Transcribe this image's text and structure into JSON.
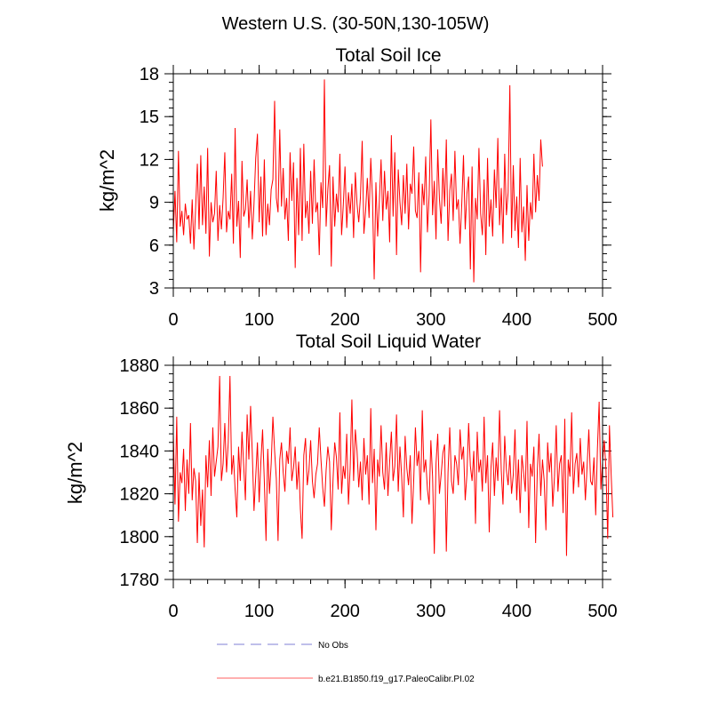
{
  "figure_title": "Western U.S. (30-50N,130-105W)",
  "legend": {
    "items": [
      {
        "label": "No Obs",
        "color": "#9999dd",
        "style": "dashed"
      },
      {
        "label": "b.e21.B1850.f19_g17.PaleoCalibr.PI.02",
        "color": "#ff8080",
        "style": "solid"
      }
    ]
  },
  "chart_data": [
    {
      "type": "line",
      "title": "Total Soil Ice",
      "xlabel": "",
      "ylabel": "kg/m^2",
      "xlim": [
        0,
        500
      ],
      "ylim": [
        3,
        18
      ],
      "xticks": [
        0,
        100,
        200,
        300,
        400,
        500
      ],
      "yticks": [
        3,
        6,
        9,
        12,
        15,
        18
      ],
      "xtick_labels": [
        "0",
        "100",
        "200",
        "300",
        "400",
        "500"
      ],
      "ytick_labels": [
        "3",
        "6",
        "9",
        "12",
        "15",
        "18"
      ],
      "series": [
        {
          "name": "b.e21.B1850.f19_g17.PaleoCalibr.PI.02",
          "color": "#ff0000",
          "x_start": 0,
          "x_step": 2,
          "values": [
            6.9,
            9.8,
            6.2,
            12.6,
            7.3,
            8.4,
            6.7,
            8.9,
            7.8,
            8.1,
            6.1,
            9.2,
            5.7,
            8.6,
            11.7,
            7.1,
            12.3,
            7.4,
            10.1,
            6.8,
            12.8,
            5.2,
            9.0,
            7.6,
            8.2,
            11.2,
            6.3,
            8.8,
            7.1,
            9.3,
            12.5,
            6.9,
            8.4,
            7.8,
            11.0,
            6.1,
            14.2,
            7.3,
            9.1,
            5.1,
            11.9,
            8.0,
            8.5,
            10.6,
            7.2,
            9.8,
            6.4,
            8.9,
            12.1,
            13.8,
            7.6,
            10.8,
            6.6,
            12.0,
            6.7,
            8.9,
            7.4,
            9.9,
            10.6,
            16.1,
            9.3,
            8.3,
            14.1,
            8.7,
            11.4,
            7.8,
            9.3,
            6.3,
            12.5,
            9.1,
            11.8,
            4.4,
            10.7,
            6.7,
            12.8,
            6.3,
            13.1,
            7.9,
            9.1,
            6.8,
            11.2,
            7.5,
            12.0,
            8.3,
            9.0,
            5.3,
            10.4,
            8.6,
            17.6,
            7.3,
            9.9,
            11.6,
            4.5,
            10.8,
            7.3,
            9.6,
            8.3,
            12.4,
            6.7,
            8.8,
            11.5,
            7.2,
            9.7,
            8.2,
            10.3,
            6.5,
            11.1,
            8.9,
            7.6,
            9.4,
            13.3,
            6.8,
            8.4,
            10.7,
            7.9,
            12.1,
            9.3,
            3.6,
            10.4,
            6.6,
            9.1,
            12.0,
            7.7,
            11.2,
            8.5,
            9.8,
            6.2,
            13.7,
            8.0,
            12.5,
            5.3,
            11.3,
            9.0,
            7.4,
            10.9,
            8.2,
            11.7,
            7.1,
            10.3,
            9.6,
            12.9,
            8.4,
            7.9,
            11.1,
            4.1,
            10.3,
            8.8,
            12.2,
            6.9,
            9.5,
            14.8,
            8.1,
            10.5,
            6.4,
            12.7,
            9.2,
            7.5,
            11.4,
            8.7,
            13.4,
            6.3,
            9.8,
            11.0,
            7.7,
            12.6,
            8.5,
            9.2,
            6.1,
            8.9,
            12.3,
            7.1,
            9.6,
            10.8,
            4.3,
            11.5,
            3.4,
            9.3,
            7.8,
            12.8,
            8.2,
            6.7,
            10.6,
            5.3,
            12.1,
            7.3,
            9.2,
            6.6,
            11.3,
            8.6,
            13.5,
            7.4,
            10.0,
            6.1,
            12.4,
            8.1,
            9.7,
            17.2,
            6.5,
            11.6,
            7.0,
            9.4,
            5.8,
            12.1,
            6.9,
            8.7,
            4.9,
            10.2,
            6.3,
            9.0,
            7.8,
            12.4,
            8.3,
            10.9,
            9.1,
            13.4,
            11.5
          ]
        }
      ]
    },
    {
      "type": "line",
      "title": "Total Soil Liquid Water",
      "xlabel": "",
      "ylabel": "kg/m^2",
      "xlim": [
        0,
        500
      ],
      "ylim": [
        1780,
        1880
      ],
      "xticks": [
        0,
        100,
        200,
        300,
        400,
        500
      ],
      "yticks": [
        1780,
        1800,
        1820,
        1840,
        1860,
        1880
      ],
      "xtick_labels": [
        "0",
        "100",
        "200",
        "300",
        "400",
        "500"
      ],
      "ytick_labels": [
        "1780",
        "1800",
        "1820",
        "1840",
        "1860",
        "1880"
      ],
      "series": [
        {
          "name": "b.e21.B1850.f19_g17.PaleoCalibr.PI.02",
          "color": "#ff0000",
          "x_start": 0,
          "x_step": 2,
          "values": [
            1848,
            1815,
            1856,
            1807,
            1830,
            1825,
            1841,
            1812,
            1836,
            1820,
            1853,
            1817,
            1832,
            1826,
            1797,
            1830,
            1805,
            1822,
            1795,
            1838,
            1823,
            1845,
            1819,
            1851,
            1828,
            1835,
            1842,
            1875,
            1826,
            1834,
            1853,
            1830,
            1844,
            1875,
            1829,
            1838,
            1822,
            1809,
            1842,
            1826,
            1849,
            1833,
            1817,
            1857,
            1836,
            1861,
            1839,
            1812,
            1828,
            1844,
            1816,
            1835,
            1850,
            1826,
            1798,
            1841,
            1820,
            1834,
            1856,
            1840,
            1827,
            1798,
            1836,
            1844,
            1830,
            1821,
            1840,
            1834,
            1851,
            1826,
            1832,
            1842,
            1822,
            1835,
            1813,
            1799,
            1838,
            1846,
            1824,
            1831,
            1845,
            1826,
            1818,
            1829,
            1834,
            1851,
            1836,
            1823,
            1814,
            1831,
            1842,
            1835,
            1803,
            1826,
            1844,
            1837,
            1822,
            1858,
            1820,
            1833,
            1827,
            1848,
            1815,
            1832,
            1864,
            1826,
            1850,
            1840,
            1823,
            1835,
            1817,
            1846,
            1829,
            1838,
            1815,
            1860,
            1825,
            1841,
            1803,
            1836,
            1828,
            1852,
            1830,
            1822,
            1844,
            1819,
            1835,
            1849,
            1826,
            1833,
            1857,
            1821,
            1842,
            1828,
            1809,
            1847,
            1832,
            1824,
            1838,
            1806,
            1826,
            1851,
            1833,
            1840,
            1817,
            1859,
            1830,
            1836,
            1822,
            1815,
            1845,
            1828,
            1792,
            1834,
            1848,
            1820,
            1829,
            1839,
            1843,
            1793,
            1830,
            1851,
            1826,
            1820,
            1838,
            1834,
            1824,
            1850,
            1836,
            1842,
            1817,
            1829,
            1853,
            1833,
            1826,
            1840,
            1806,
            1849,
            1830,
            1836,
            1821,
            1856,
            1825,
            1838,
            1802,
            1832,
            1844,
            1819,
            1837,
            1826,
            1859,
            1831,
            1815,
            1847,
            1831,
            1824,
            1838,
            1820,
            1829,
            1850,
            1817,
            1836,
            1811,
            1838,
            1830,
            1821,
            1854,
            1804,
            1834,
            1828,
            1842,
            1797,
            1831,
            1848,
            1819,
            1836,
            1826,
            1803,
            1844,
            1830,
            1839,
            1814,
            1828,
            1852,
            1821,
            1834,
            1838,
            1811,
            1855,
            1791,
            1836,
            1828,
            1858,
            1820,
            1834,
            1839,
            1823,
            1846,
            1829,
            1835,
            1817,
            1833,
            1850,
            1826,
            1824,
            1837,
            1810,
            1841,
            1863,
            1822,
            1835,
            1845,
            1831,
            1799,
            1852,
            1829,
            1809
          ]
        }
      ]
    }
  ]
}
